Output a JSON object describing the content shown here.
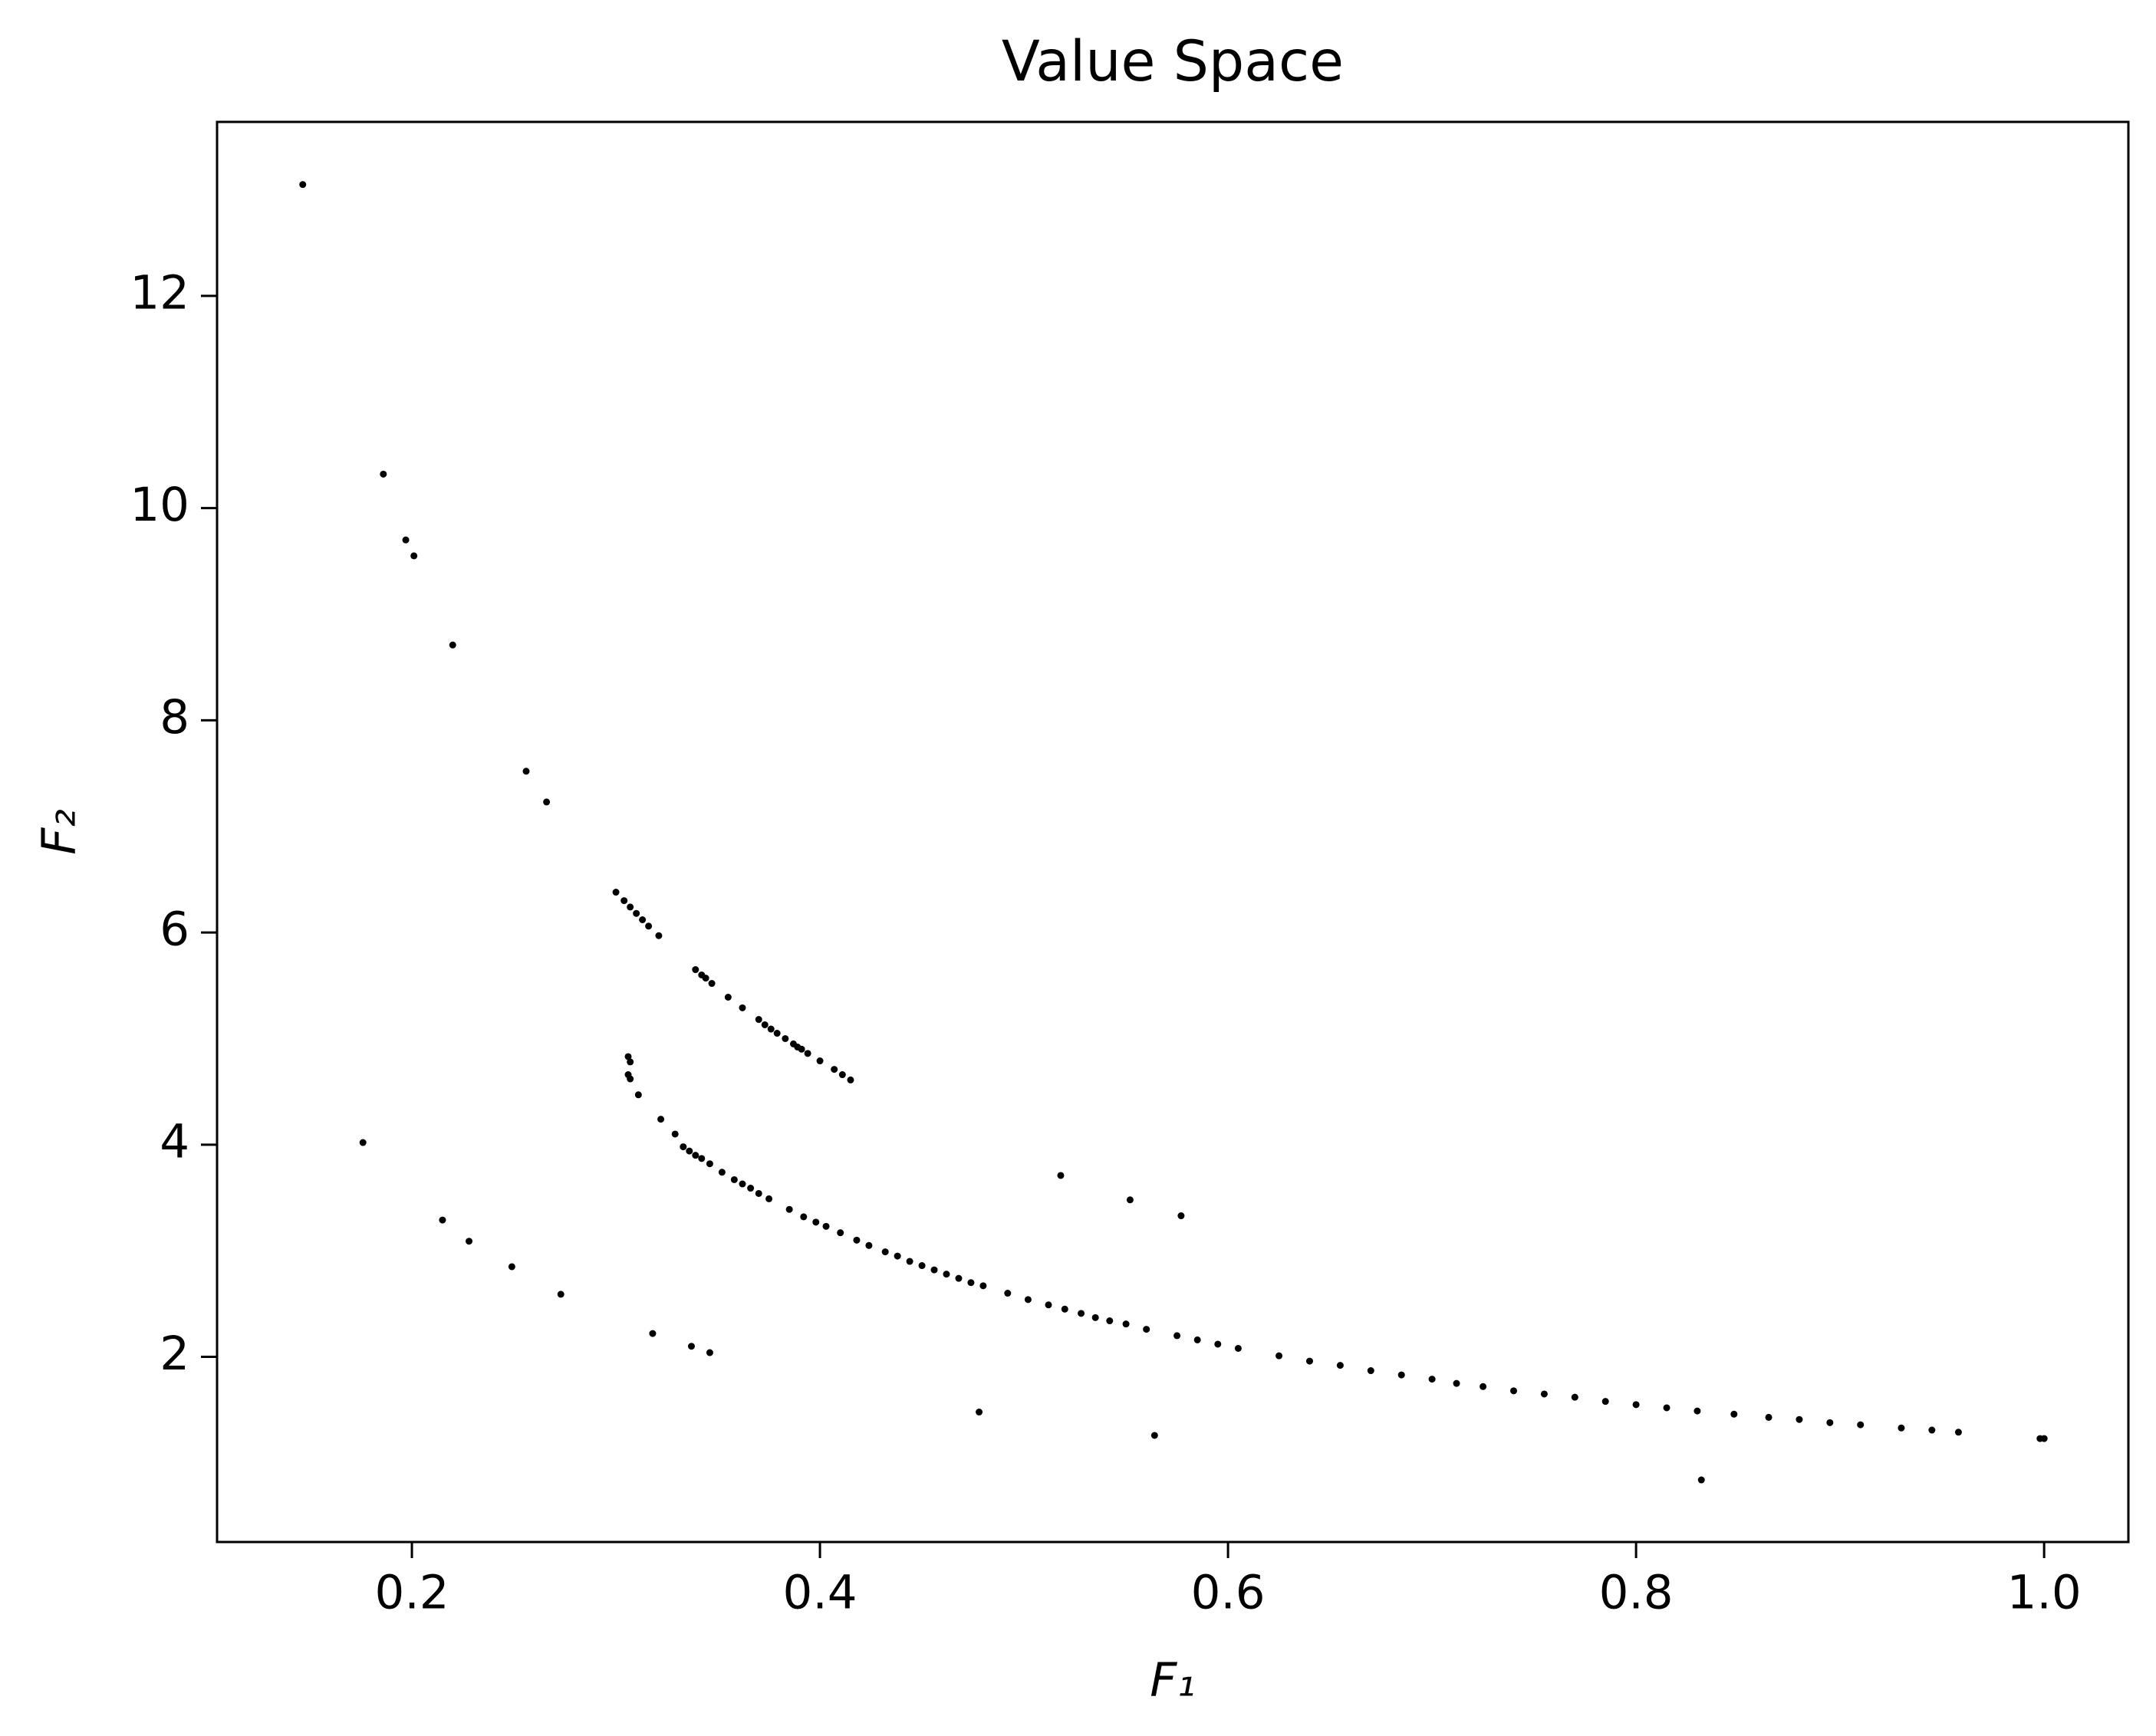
{
  "chart_data": {
    "type": "scatter",
    "title": "Value Space",
    "x_label": "F₁",
    "y_label": "F₂",
    "xlim": [
      0.1045,
      1.0413
    ],
    "ylim": [
      0.255,
      13.64
    ],
    "xticks": [
      0.2,
      0.4,
      0.6,
      0.8,
      {
        "value": 1.0,
        "label": "1.0"
      }
    ],
    "yticks": [
      2,
      4,
      6,
      8,
      10,
      12
    ],
    "grid": false,
    "series": [
      {
        "color": "#000000",
        "x": [
          0.1465,
          0.186,
          0.197,
          0.201,
          0.22,
          0.256,
          0.266,
          0.176,
          0.215,
          0.228,
          0.249,
          0.273,
          0.318,
          0.337,
          0.346,
          0.478,
          0.564,
          0.518,
          0.552,
          0.577,
          0.832,
          0.3,
          0.304,
          0.307,
          0.31,
          0.313,
          0.316,
          0.321,
          0.339,
          0.342,
          0.344,
          0.347,
          0.355,
          0.362,
          0.37,
          0.373,
          0.376,
          0.379,
          0.383,
          0.387,
          0.389,
          0.391,
          0.394,
          0.4,
          0.407,
          0.411,
          0.415,
          0.306,
          0.307,
          0.306,
          0.307,
          0.311,
          0.322,
          0.329,
          0.333,
          0.336,
          0.339,
          0.342,
          0.346,
          0.352,
          0.358,
          0.362,
          0.366,
          0.37,
          0.375,
          0.385,
          0.392,
          0.398,
          0.403,
          0.41,
          0.418,
          0.424,
          0.432,
          0.438,
          0.444,
          0.45,
          0.456,
          0.462,
          0.468,
          0.474,
          0.48,
          0.492,
          0.502,
          0.512,
          0.52,
          0.528,
          0.535,
          0.542,
          0.55,
          0.56,
          0.575,
          0.585,
          0.595,
          0.605,
          0.625,
          0.64,
          0.655,
          0.67,
          0.685,
          0.7,
          0.712,
          0.725,
          0.74,
          0.755,
          0.77,
          0.785,
          0.8,
          0.815,
          0.83,
          0.848,
          0.865,
          0.88,
          0.895,
          0.91,
          0.93,
          0.945,
          0.958,
          0.998,
          1.0
        ],
        "values": [
          13.05,
          10.32,
          9.7,
          9.55,
          8.71,
          7.52,
          7.23,
          4.02,
          3.29,
          3.09,
          2.85,
          2.59,
          2.22,
          2.1,
          2.04,
          1.48,
          1.26,
          3.71,
          3.48,
          3.33,
          0.84,
          6.38,
          6.3,
          6.24,
          6.18,
          6.12,
          6.06,
          5.97,
          5.65,
          5.6,
          5.57,
          5.52,
          5.39,
          5.29,
          5.18,
          5.13,
          5.09,
          5.05,
          5.0,
          4.95,
          4.92,
          4.9,
          4.86,
          4.79,
          4.71,
          4.66,
          4.61,
          4.83,
          4.78,
          4.66,
          4.62,
          4.47,
          4.24,
          4.1,
          3.98,
          3.94,
          3.9,
          3.87,
          3.82,
          3.74,
          3.67,
          3.63,
          3.59,
          3.54,
          3.49,
          3.39,
          3.32,
          3.27,
          3.23,
          3.17,
          3.1,
          3.05,
          2.99,
          2.95,
          2.9,
          2.86,
          2.82,
          2.78,
          2.74,
          2.7,
          2.67,
          2.6,
          2.54,
          2.49,
          2.45,
          2.41,
          2.37,
          2.34,
          2.31,
          2.26,
          2.2,
          2.16,
          2.12,
          2.08,
          2.01,
          1.96,
          1.92,
          1.87,
          1.83,
          1.79,
          1.75,
          1.72,
          1.68,
          1.65,
          1.62,
          1.58,
          1.55,
          1.52,
          1.49,
          1.46,
          1.43,
          1.41,
          1.38,
          1.36,
          1.33,
          1.31,
          1.29,
          1.23,
          1.23
        ]
      }
    ]
  }
}
